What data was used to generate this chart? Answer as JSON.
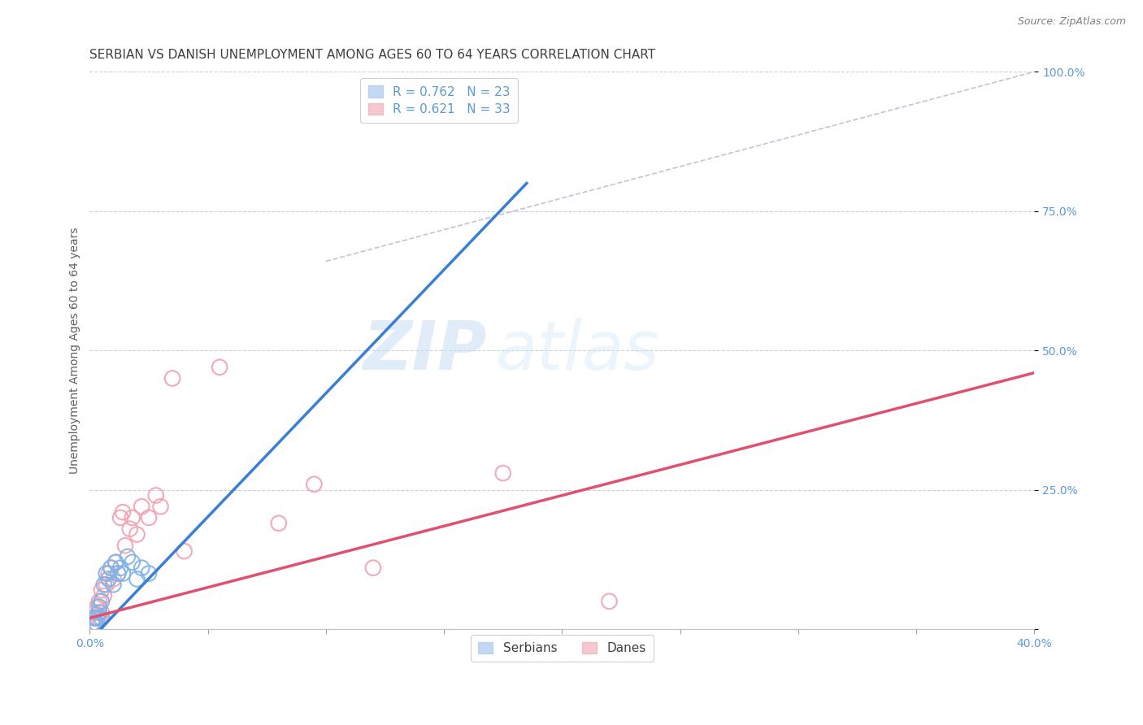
{
  "title": "SERBIAN VS DANISH UNEMPLOYMENT AMONG AGES 60 TO 64 YEARS CORRELATION CHART",
  "source": "Source: ZipAtlas.com",
  "xlabel": "",
  "ylabel": "Unemployment Among Ages 60 to 64 years",
  "xlim": [
    0.0,
    0.4
  ],
  "ylim": [
    0.0,
    1.0
  ],
  "xticks": [
    0.0,
    0.05,
    0.1,
    0.15,
    0.2,
    0.25,
    0.3,
    0.35,
    0.4
  ],
  "yticks": [
    0.0,
    0.25,
    0.5,
    0.75,
    1.0
  ],
  "yticklabels": [
    "",
    "25.0%",
    "50.0%",
    "75.0%",
    "100.0%"
  ],
  "serbian_x": [
    0.001,
    0.002,
    0.002,
    0.003,
    0.003,
    0.004,
    0.004,
    0.005,
    0.005,
    0.006,
    0.007,
    0.008,
    0.009,
    0.01,
    0.011,
    0.012,
    0.013,
    0.014,
    0.016,
    0.018,
    0.02,
    0.022,
    0.025
  ],
  "serbian_y": [
    0.01,
    0.01,
    0.02,
    0.01,
    0.02,
    0.03,
    0.04,
    0.02,
    0.05,
    0.08,
    0.1,
    0.09,
    0.11,
    0.08,
    0.12,
    0.1,
    0.11,
    0.1,
    0.13,
    0.12,
    0.09,
    0.11,
    0.1
  ],
  "danish_x": [
    0.001,
    0.002,
    0.002,
    0.003,
    0.004,
    0.004,
    0.005,
    0.005,
    0.006,
    0.007,
    0.008,
    0.009,
    0.01,
    0.011,
    0.012,
    0.013,
    0.014,
    0.015,
    0.017,
    0.018,
    0.02,
    0.022,
    0.025,
    0.028,
    0.03,
    0.035,
    0.04,
    0.055,
    0.08,
    0.095,
    0.12,
    0.175,
    0.22
  ],
  "danish_y": [
    0.01,
    0.02,
    0.03,
    0.04,
    0.02,
    0.05,
    0.03,
    0.07,
    0.06,
    0.08,
    0.1,
    0.11,
    0.09,
    0.12,
    0.1,
    0.2,
    0.21,
    0.15,
    0.18,
    0.2,
    0.17,
    0.22,
    0.2,
    0.24,
    0.22,
    0.45,
    0.14,
    0.47,
    0.19,
    0.26,
    0.11,
    0.28,
    0.05
  ],
  "serbian_line_x0": 0.0,
  "serbian_line_y0": -0.02,
  "serbian_line_x1": 0.185,
  "serbian_line_y1": 0.8,
  "danish_line_x0": 0.0,
  "danish_line_y0": 0.02,
  "danish_line_x1": 0.4,
  "danish_line_y1": 0.46,
  "ref_line_x0": 0.1,
  "ref_line_y0": 0.66,
  "ref_line_x1": 0.4,
  "ref_line_y1": 1.0,
  "serbian_color": "#7eb3e8",
  "danish_color": "#f4a0b0",
  "serbian_line_color": "#3a7fd5",
  "danish_line_color": "#e05070",
  "ref_line_color": "#b0b8c8",
  "legend_serbian_label": "R = 0.762   N = 23",
  "legend_danish_label": "R = 0.621   N = 33",
  "legend_serbian_color": "#a8caf0",
  "legend_danish_color": "#f4b0c0",
  "watermark_zip": "ZIP",
  "watermark_atlas": "atlas",
  "background_color": "#ffffff",
  "grid_color": "#c8d0d8",
  "title_color": "#404040",
  "axis_label_color": "#606060",
  "tick_label_color": "#5b9bd5",
  "bottom_legend_color": "#404040",
  "title_fontsize": 11,
  "axis_label_fontsize": 10,
  "tick_fontsize": 10,
  "source_fontsize": 9,
  "marker_size": 180
}
